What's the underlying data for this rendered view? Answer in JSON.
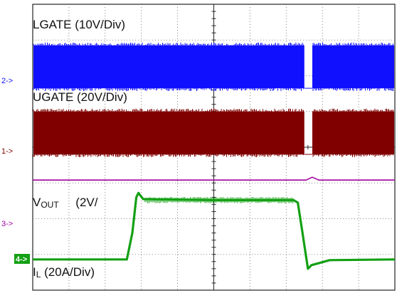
{
  "chart_data": {
    "type": "line",
    "grid": true,
    "divisions": {
      "x": 10,
      "y": 8
    },
    "channels": [
      {
        "id": "lgate",
        "marker": "2->",
        "label": "LGATE  (10V/Div)",
        "color": "#1010ff",
        "style": "switching",
        "baseline_div": 5.65,
        "amplitude_div": 1.2,
        "gap_time_div": [
          7.5,
          7.72
        ]
      },
      {
        "id": "ugate",
        "marker": "1->",
        "label": "UGATE  (20V/Div)",
        "color": "#800000",
        "style": "switching",
        "baseline_div": 3.8,
        "amplitude_div": 1.2,
        "gap_time_div": [
          7.5,
          7.72
        ]
      },
      {
        "id": "vout",
        "marker": "3->",
        "label_main": "V",
        "label_sub": "OUT",
        "label_tail": "     (2V/",
        "color": "#a000a0",
        "points": [
          [
            0,
            3.08
          ],
          [
            7.55,
            3.08
          ],
          [
            7.72,
            3.16
          ],
          [
            7.9,
            3.08
          ],
          [
            10,
            3.08
          ]
        ]
      },
      {
        "id": "il",
        "marker": "4->",
        "label_main": "I",
        "label_sub": "L",
        "label_tail": " (20A/Div)",
        "color": "#14a014",
        "points": [
          [
            0,
            0.86
          ],
          [
            2.6,
            0.86
          ],
          [
            2.75,
            1.6
          ],
          [
            2.86,
            2.6
          ],
          [
            2.92,
            2.72
          ],
          [
            3.05,
            2.55
          ],
          [
            5,
            2.52
          ],
          [
            7.2,
            2.52
          ],
          [
            7.32,
            2.45
          ],
          [
            7.45,
            1.6
          ],
          [
            7.6,
            0.6
          ],
          [
            7.7,
            0.7
          ],
          [
            8.2,
            0.84
          ],
          [
            10,
            0.86
          ]
        ]
      }
    ]
  }
}
